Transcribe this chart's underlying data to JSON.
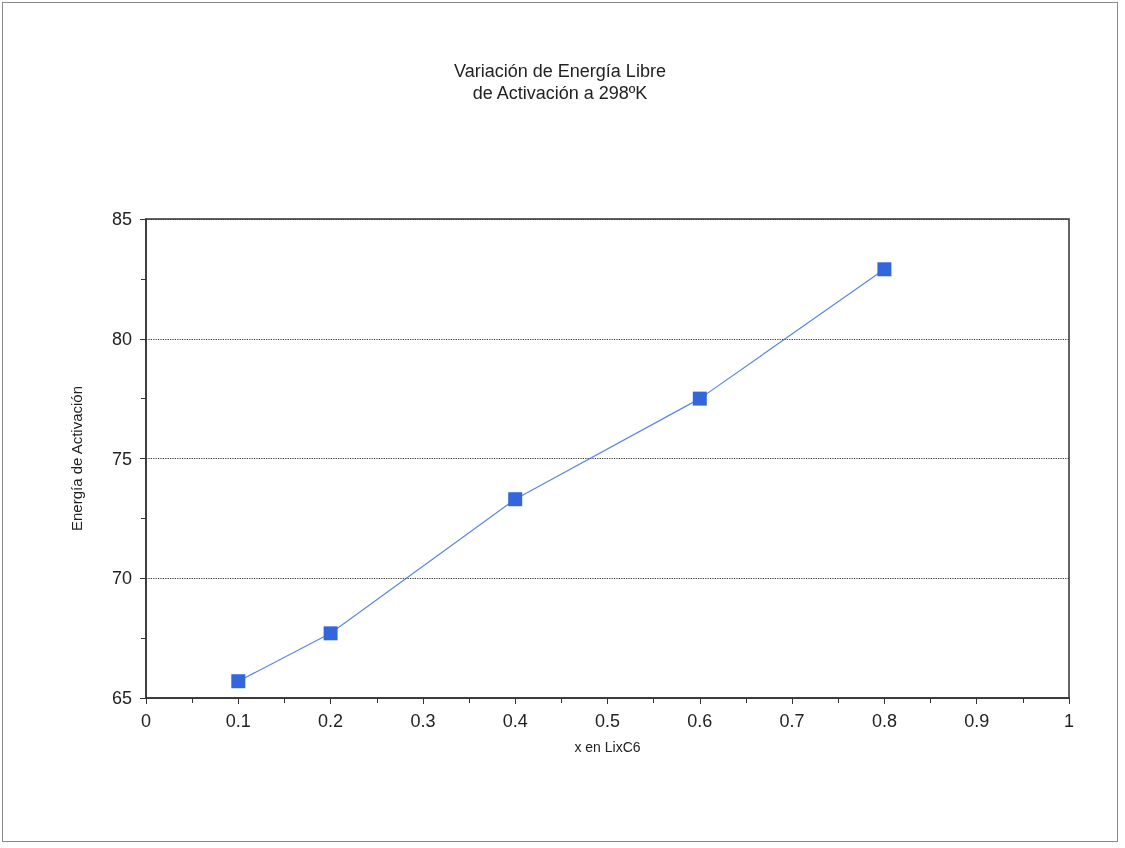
{
  "chart_data": {
    "type": "line",
    "title": "Variación de Energía Libre\nde Activación a 298ºK",
    "xlabel": "x en LixC6",
    "ylabel": "Energía de Activación",
    "x": [
      0.1,
      0.2,
      0.4,
      0.6,
      0.8
    ],
    "series": [
      {
        "color": "#3366dd",
        "values": [
          65.7,
          67.7,
          73.3,
          77.5,
          82.9
        ]
      }
    ],
    "xlim": [
      0,
      1
    ],
    "xticks": [
      0,
      0.1,
      0.2,
      0.3,
      0.4,
      0.5,
      0.6,
      0.7,
      0.8,
      0.9,
      1
    ],
    "ylim": [
      65,
      85
    ],
    "yticks": [
      65,
      70,
      75,
      80,
      85
    ],
    "grid": "y",
    "marker": "square",
    "line_style": "solid"
  }
}
